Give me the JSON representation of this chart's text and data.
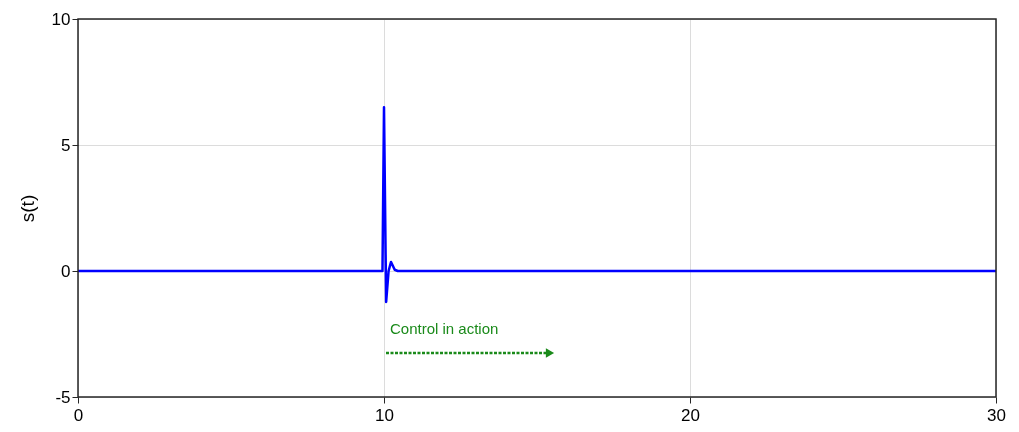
{
  "chart_data": {
    "type": "line",
    "ylabel": "s(t)",
    "x": [
      0,
      9.95,
      10,
      10.07,
      10.15,
      10.23,
      10.35,
      10.45,
      30
    ],
    "series": [
      {
        "color": "#0000ff",
        "values": [
          0,
          0,
          6.5,
          -1.23,
          0,
          0.36,
          0.05,
          0,
          0
        ]
      }
    ],
    "xlim": [
      0,
      30
    ],
    "xticks": [
      0,
      10,
      20,
      30
    ],
    "ylim": [
      -5,
      10
    ],
    "yticks": [
      -5,
      0,
      5,
      10
    ],
    "grid": true,
    "marker": "none",
    "line_style": "solid",
    "annotations": [
      "Control in action"
    ]
  }
}
